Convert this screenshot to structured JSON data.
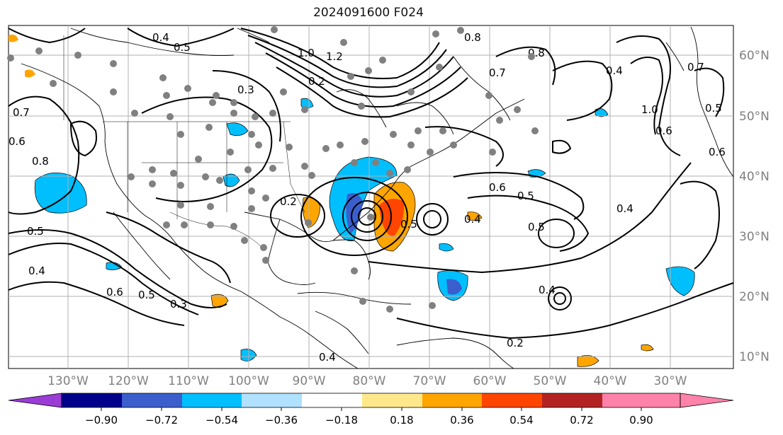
{
  "title": "2024091600 F024",
  "lon_labels": [
    "130°W",
    "120°W",
    "110°W",
    "100°W",
    "90°W",
    "80°W",
    "70°W",
    "60°W",
    "50°W",
    "40°W",
    "30°W"
  ],
  "lat_labels": [
    "60°N",
    "50°N",
    "40°N",
    "30°N",
    "20°N",
    "10°N"
  ],
  "contour_labels": [
    "0.4",
    "0.5",
    "0.8",
    "1.0",
    "1.2",
    "0.2",
    "0.3",
    "0.7",
    "0.6",
    "0.8",
    "0.7",
    "0.8",
    "0.6",
    "0.5",
    "0.4",
    "0.5",
    "0.6",
    "0.5",
    "0.3",
    "0.4",
    "0.4",
    "0.5",
    "0.2",
    "0.4",
    "0.5",
    "0.6",
    "1.0",
    "0.5",
    "0.6",
    "0.7",
    "0.4",
    "0.2",
    "0.4"
  ],
  "colorbar": {
    "ticks": [
      "−0.90",
      "−0.72",
      "−0.54",
      "−0.36",
      "−0.18",
      "0.18",
      "0.36",
      "0.54",
      "0.72",
      "0.90"
    ],
    "colors": [
      "#9a3cd6",
      "#00008b",
      "#3a5fcd",
      "#00bfff",
      "#b0e2ff",
      "#ffffff",
      "#ffe88c",
      "#ffa500",
      "#ff4500",
      "#b22222",
      "#ff82ab"
    ]
  }
}
